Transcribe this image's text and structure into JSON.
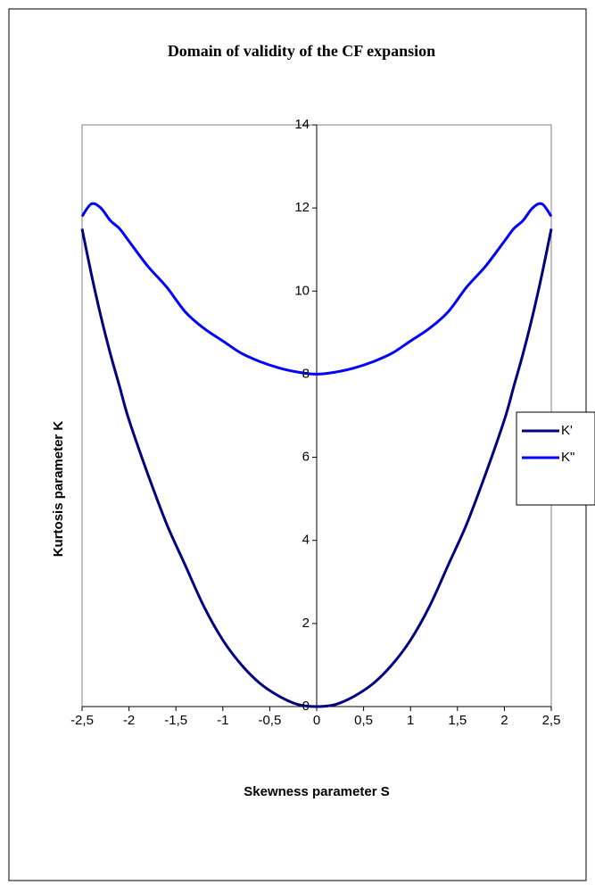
{
  "chart_data": {
    "type": "line",
    "title": "Domain of validity of the CF expansion",
    "xlabel": "Skewness parameter S",
    "ylabel": "Kurtosis parameter K",
    "xlim": [
      -2.5,
      2.5
    ],
    "ylim": [
      0,
      14
    ],
    "x_ticks": [
      -2.5,
      -2,
      -1.5,
      -1,
      -0.5,
      0,
      0.5,
      1,
      1.5,
      2,
      2.5
    ],
    "x_tick_labels": [
      "-2,5",
      "-2",
      "-1,5",
      "-1",
      "-0,5",
      "0",
      "0,5",
      "1",
      "1,5",
      "2",
      "2,5"
    ],
    "y_ticks": [
      0,
      2,
      4,
      6,
      8,
      10,
      12,
      14
    ],
    "y_tick_labels": [
      "0",
      "2",
      "4",
      "6",
      "8",
      "10",
      "12",
      "14"
    ],
    "grid": false,
    "legend_position": "right",
    "x": [
      -2.5,
      -2.4,
      -2.3,
      -2.2,
      -2.1,
      -2.0,
      -1.8,
      -1.6,
      -1.4,
      -1.2,
      -1.0,
      -0.8,
      -0.6,
      -0.4,
      -0.2,
      0.0,
      0.2,
      0.4,
      0.6,
      0.8,
      1.0,
      1.2,
      1.4,
      1.6,
      1.8,
      2.0,
      2.1,
      2.2,
      2.3,
      2.4,
      2.5
    ],
    "series": [
      {
        "name": "K'",
        "color": "#000080",
        "values": [
          11.5,
          10.4,
          9.4,
          8.5,
          7.7,
          6.9,
          5.6,
          4.4,
          3.4,
          2.4,
          1.6,
          1.0,
          0.55,
          0.25,
          0.05,
          0.0,
          0.05,
          0.25,
          0.55,
          1.0,
          1.6,
          2.4,
          3.4,
          4.4,
          5.6,
          6.9,
          7.7,
          8.5,
          9.4,
          10.4,
          11.5
        ]
      },
      {
        "name": "K\"",
        "color": "#0000FF",
        "values": [
          11.8,
          12.1,
          12.0,
          11.7,
          11.5,
          11.2,
          10.6,
          10.1,
          9.5,
          9.1,
          8.8,
          8.5,
          8.3,
          8.15,
          8.05,
          8.0,
          8.05,
          8.15,
          8.3,
          8.5,
          8.8,
          9.1,
          9.5,
          10.1,
          10.6,
          11.2,
          11.5,
          11.7,
          12.0,
          12.1,
          11.8
        ]
      }
    ]
  }
}
